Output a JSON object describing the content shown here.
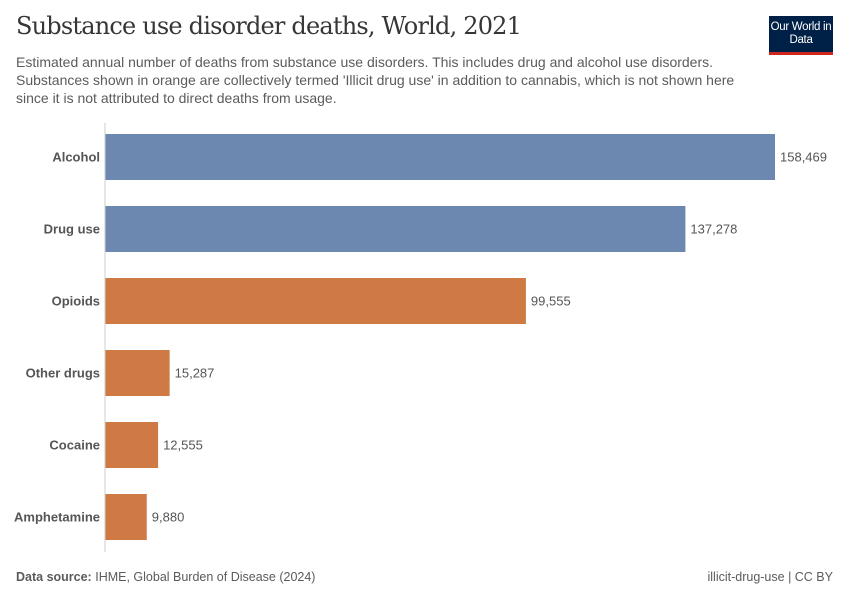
{
  "header": {
    "title": "Substance use disorder deaths, World, 2021",
    "subtitle": "Estimated annual number of deaths from substance use disorders. This includes drug and alcohol use disorders. Substances shown in orange are collectively termed 'Illicit drug use' in addition to cannabis, which is not shown here since it is not attributed to direct deaths from usage.",
    "logo": "Our World in Data"
  },
  "footer": {
    "source_label": "Data source:",
    "source": "IHME, Global Burden of Disease (2024)",
    "license": "illicit-drug-use | CC BY"
  },
  "colors": {
    "blue": "#6d88b0",
    "orange": "#cf7a44",
    "logo_bg": "#002147",
    "logo_accent": "#ce261e"
  },
  "chart_data": {
    "type": "bar",
    "orientation": "horizontal",
    "categories": [
      "Alcohol",
      "Drug use",
      "Opioids",
      "Other drugs",
      "Cocaine",
      "Amphetamine"
    ],
    "values": [
      158469,
      137278,
      99555,
      15287,
      12555,
      9880
    ],
    "value_labels": [
      "158,469",
      "137,278",
      "99,555",
      "15,287",
      "12,555",
      "9,880"
    ],
    "bar_colors": [
      "blue",
      "blue",
      "orange",
      "orange",
      "orange",
      "orange"
    ],
    "xlim": [
      0,
      158469
    ],
    "grid": false
  }
}
